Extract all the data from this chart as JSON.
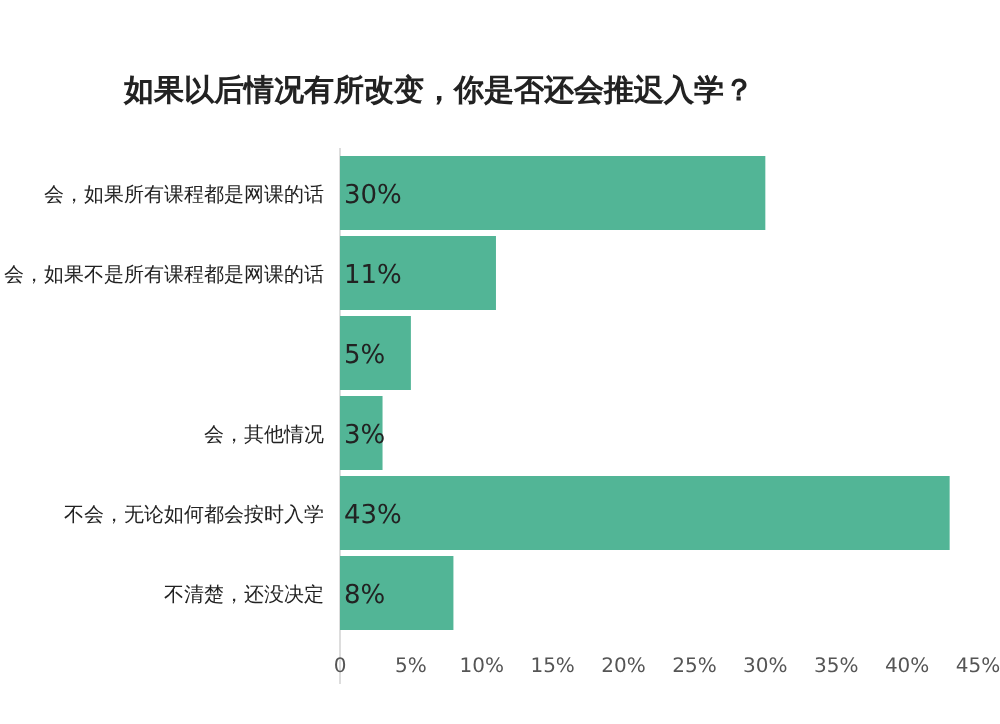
{
  "chart_data": {
    "type": "bar",
    "orientation": "horizontal",
    "title": "如果以后情况有所改变，你是否还会推迟入学？",
    "categories": [
      "会，如果所有课程都是网课的话",
      "会，如果不是所有课程都是网课的话",
      null,
      "会，其他情况",
      "不会，无论如何都会按时入学",
      "不清楚，还没决定"
    ],
    "values": [
      30,
      11,
      5,
      3,
      43,
      8
    ],
    "value_labels": [
      "30%",
      "11%",
      "5%",
      "3%",
      "43%",
      "8%"
    ],
    "color": "#52b596",
    "xlim": [
      0,
      45
    ],
    "xticks": [
      0,
      {
        "value": 5,
        "label": "5%"
      },
      {
        "value": 10,
        "label": "10%"
      },
      {
        "value": 15,
        "label": "15%"
      },
      {
        "value": 20,
        "label": "20%"
      },
      {
        "value": 25,
        "label": "25%"
      },
      {
        "value": 30,
        "label": "30%"
      },
      {
        "value": 35,
        "label": "35%"
      },
      {
        "value": 40,
        "label": "40%"
      },
      {
        "value": 45,
        "label": "45%"
      }
    ],
    "grid": false
  }
}
